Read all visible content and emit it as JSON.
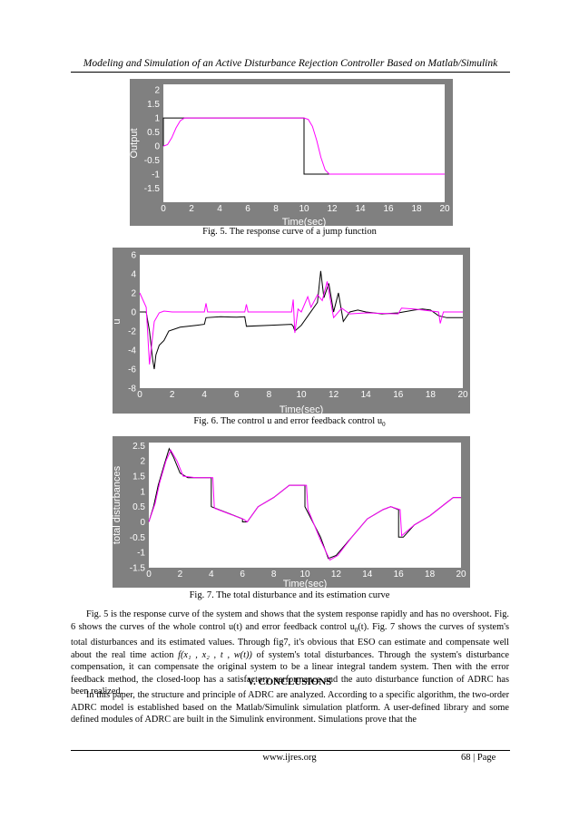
{
  "header": {
    "title": "Modeling and Simulation of an Active Disturbance Rejection Controller Based on Matlab/Simulink"
  },
  "colors": {
    "frame": "#808080",
    "plot_bg": "#ffffff",
    "reference": "#000000",
    "response": "#ff00ff",
    "axis_text": "#ffffff"
  },
  "captions": {
    "fig5": "Fig. 5. The response curve of a jump function",
    "fig6_text": "Fig. 6. The control u and error feedback control u",
    "fig6_sub": "0",
    "fig7": "Fig. 7. The total disturbance and its estimation curve"
  },
  "paragraph1": {
    "part1": "Fig. 5 is the response curve of the system and shows that the system response rapidly and has no overshoot. Fig. 6 shows the curves of the whole control u(t) and error feedback control u",
    "sub1": "0",
    "part2": "(t). Fig. 7 shows the curves of system's total disturbances and its estimated values. Through fig7, it's obvious that ESO can estimate and compensate well about the real time action ",
    "math": "f(x₁ , x₂ , t , w(t))",
    "part3": " of system's total disturbances. Through the system's disturbance compensation, it can compensate the original system to be a linear integral tandem system. Then with the error feedback method, the closed-loop has a satisfactory performance and the auto disturbance function of ADRC has been realized."
  },
  "section": {
    "title": "V. CONCLUSIONS"
  },
  "paragraph2": "In this paper, the structure and principle of ADRC are analyzed. According to a specific algorithm, the two-order ADRC model is established based on the Matlab/Simulink simulation platform. A user-defined library and some defined modules of ADRC are built in the Simulink environment. Simulations prove that the",
  "footer": {
    "url": "www.ijres.org",
    "page": "68 | Page"
  },
  "chart_data": [
    {
      "id": "fig5",
      "type": "line",
      "ylabel": "Output",
      "xlabel": "Time(sec)",
      "xlim": [
        0,
        20
      ],
      "ylim": [
        -2,
        2.2
      ],
      "xticks": [
        "0",
        "2",
        "4",
        "6",
        "8",
        "10",
        "12",
        "14",
        "16",
        "18",
        "20"
      ],
      "yticks": [
        "2",
        "1.5",
        "1",
        "0.5",
        "0",
        "-0.5",
        "-1",
        "-1.5"
      ],
      "series": [
        {
          "role": "reference",
          "color": "#000000",
          "points": [
            [
              0,
              0
            ],
            [
              0,
              1
            ],
            [
              10,
              1
            ],
            [
              10,
              -1
            ],
            [
              20,
              -1
            ]
          ]
        },
        {
          "role": "response",
          "color": "#ff00ff",
          "points": [
            [
              0,
              0
            ],
            [
              0.3,
              0.05
            ],
            [
              0.6,
              0.3
            ],
            [
              0.9,
              0.65
            ],
            [
              1.2,
              0.9
            ],
            [
              1.5,
              1
            ],
            [
              10,
              1
            ],
            [
              10.3,
              0.95
            ],
            [
              10.6,
              0.7
            ],
            [
              10.9,
              0.2
            ],
            [
              11.2,
              -0.4
            ],
            [
              11.5,
              -0.85
            ],
            [
              11.8,
              -1
            ],
            [
              20,
              -1
            ]
          ]
        }
      ]
    },
    {
      "id": "fig6",
      "type": "line",
      "ylabel": "u",
      "xlabel": "Time(sec)",
      "xlim": [
        0,
        20
      ],
      "ylim": [
        -8,
        6
      ],
      "xticks": [
        "0",
        "2",
        "4",
        "6",
        "8",
        "10",
        "12",
        "14",
        "16",
        "18",
        "20"
      ],
      "yticks": [
        "6",
        "4",
        "2",
        "0",
        "-2",
        "-4",
        "-6",
        "-8"
      ],
      "series": [
        {
          "role": "u",
          "color": "#000000",
          "points": [
            [
              0,
              0
            ],
            [
              0.4,
              0
            ],
            [
              0.6,
              -2
            ],
            [
              0.8,
              -5
            ],
            [
              0.9,
              -6
            ],
            [
              1.0,
              -4.5
            ],
            [
              1.2,
              -3.5
            ],
            [
              1.5,
              -3
            ],
            [
              1.8,
              -2
            ],
            [
              2.5,
              -1.6
            ],
            [
              3.5,
              -1.4
            ],
            [
              4,
              -1.3
            ],
            [
              4.1,
              -0.6
            ],
            [
              5,
              -0.5
            ],
            [
              6,
              -0.55
            ],
            [
              6.5,
              -0.5
            ],
            [
              6.6,
              -1.5
            ],
            [
              8,
              -1.4
            ],
            [
              9.4,
              -1.3
            ],
            [
              9.5,
              -1.5
            ],
            [
              9.6,
              -2
            ],
            [
              10,
              -1.4
            ],
            [
              10.5,
              -0.2
            ],
            [
              11,
              1
            ],
            [
              11.2,
              4.3
            ],
            [
              11.4,
              1.5
            ],
            [
              11.7,
              3
            ],
            [
              12,
              0
            ],
            [
              12.3,
              2
            ],
            [
              12.6,
              -1
            ],
            [
              13,
              0
            ],
            [
              13.5,
              0.2
            ],
            [
              14,
              0
            ],
            [
              15,
              -0.2
            ],
            [
              16,
              -0.1
            ],
            [
              17,
              0.2
            ],
            [
              17.5,
              0.3
            ],
            [
              18,
              0.2
            ],
            [
              18.5,
              -0.4
            ],
            [
              19,
              -0.6
            ],
            [
              20,
              -0.6
            ]
          ]
        },
        {
          "role": "u0",
          "color": "#ff00ff",
          "points": [
            [
              0,
              2
            ],
            [
              0.4,
              0.5
            ],
            [
              0.6,
              -5.5
            ],
            [
              0.9,
              -1
            ],
            [
              1.2,
              -0.1
            ],
            [
              1.5,
              0.1
            ],
            [
              2,
              0
            ],
            [
              4,
              0
            ],
            [
              4.1,
              0.9
            ],
            [
              4.2,
              0
            ],
            [
              6.5,
              0
            ],
            [
              6.6,
              0.8
            ],
            [
              6.7,
              0
            ],
            [
              9.4,
              0
            ],
            [
              9.5,
              1.3
            ],
            [
              9.6,
              -2.2
            ],
            [
              9.8,
              0.3
            ],
            [
              10,
              0
            ],
            [
              10.4,
              1.6
            ],
            [
              10.6,
              0.5
            ],
            [
              11,
              1.8
            ],
            [
              11.3,
              1.2
            ],
            [
              11.6,
              3.2
            ],
            [
              12,
              -0.6
            ],
            [
              12.5,
              0.4
            ],
            [
              13,
              -0.2
            ],
            [
              14,
              -0.1
            ],
            [
              16,
              -0.2
            ],
            [
              16.2,
              0.4
            ],
            [
              17,
              0.3
            ],
            [
              18.5,
              0
            ],
            [
              18.6,
              -1.2
            ],
            [
              18.8,
              0
            ],
            [
              20,
              0
            ]
          ]
        }
      ]
    },
    {
      "id": "fig7",
      "type": "line",
      "ylabel": "total disturbances",
      "xlabel": "Time(sec)",
      "xlim": [
        0,
        20
      ],
      "ylim": [
        -1.5,
        2.6
      ],
      "xticks": [
        "0",
        "2",
        "4",
        "6",
        "8",
        "10",
        "12",
        "14",
        "16",
        "18",
        "20"
      ],
      "yticks": [
        "2.5",
        "2",
        "1.5",
        "1",
        "0.5",
        "0",
        "-0.5",
        "-1",
        "-1.5"
      ],
      "series": [
        {
          "role": "disturbance",
          "color": "#000000",
          "points": [
            [
              0,
              0
            ],
            [
              0.3,
              0.5
            ],
            [
              0.6,
              1.2
            ],
            [
              1,
              1.9
            ],
            [
              1.3,
              2.4
            ],
            [
              1.6,
              2.1
            ],
            [
              2,
              1.6
            ],
            [
              2.5,
              1.45
            ],
            [
              3,
              1.45
            ],
            [
              4,
              1.45
            ],
            [
              4,
              0.5
            ],
            [
              6,
              0.1
            ],
            [
              6,
              0
            ],
            [
              6.2,
              0
            ],
            [
              6.3,
              0
            ],
            [
              7,
              0.5
            ],
            [
              8,
              0.8
            ],
            [
              9,
              1.2
            ],
            [
              10,
              1.2
            ],
            [
              10,
              0.5
            ],
            [
              11,
              -0.5
            ],
            [
              11.5,
              -1.2
            ],
            [
              12,
              -1.1
            ],
            [
              13,
              -0.5
            ],
            [
              14,
              0.1
            ],
            [
              15,
              0.4
            ],
            [
              15.5,
              0.5
            ],
            [
              16,
              0.4
            ],
            [
              16,
              -0.5
            ],
            [
              16.3,
              -0.5
            ],
            [
              17,
              -0.1
            ],
            [
              18,
              0.2
            ],
            [
              19,
              0.6
            ],
            [
              19.5,
              0.8
            ],
            [
              20,
              0.8
            ]
          ]
        },
        {
          "role": "estimate",
          "color": "#ff00ff",
          "points": [
            [
              0,
              0
            ],
            [
              0.4,
              0.6
            ],
            [
              0.7,
              1.3
            ],
            [
              1.1,
              2
            ],
            [
              1.4,
              2.35
            ],
            [
              1.8,
              2
            ],
            [
              2.2,
              1.5
            ],
            [
              3,
              1.45
            ],
            [
              4.1,
              1.45
            ],
            [
              4.2,
              0.45
            ],
            [
              6.1,
              0.08
            ],
            [
              6.3,
              0
            ],
            [
              7,
              0.5
            ],
            [
              8,
              0.8
            ],
            [
              9,
              1.2
            ],
            [
              10.1,
              1.2
            ],
            [
              10.2,
              0.4
            ],
            [
              11,
              -0.6
            ],
            [
              11.6,
              -1.25
            ],
            [
              12.1,
              -1.1
            ],
            [
              13,
              -0.5
            ],
            [
              14,
              0.1
            ],
            [
              15,
              0.4
            ],
            [
              15.5,
              0.5
            ],
            [
              16.1,
              0.4
            ],
            [
              16.2,
              -0.45
            ],
            [
              17,
              -0.1
            ],
            [
              18,
              0.2
            ],
            [
              19,
              0.6
            ],
            [
              19.5,
              0.8
            ],
            [
              20,
              0.8
            ]
          ]
        }
      ]
    }
  ]
}
